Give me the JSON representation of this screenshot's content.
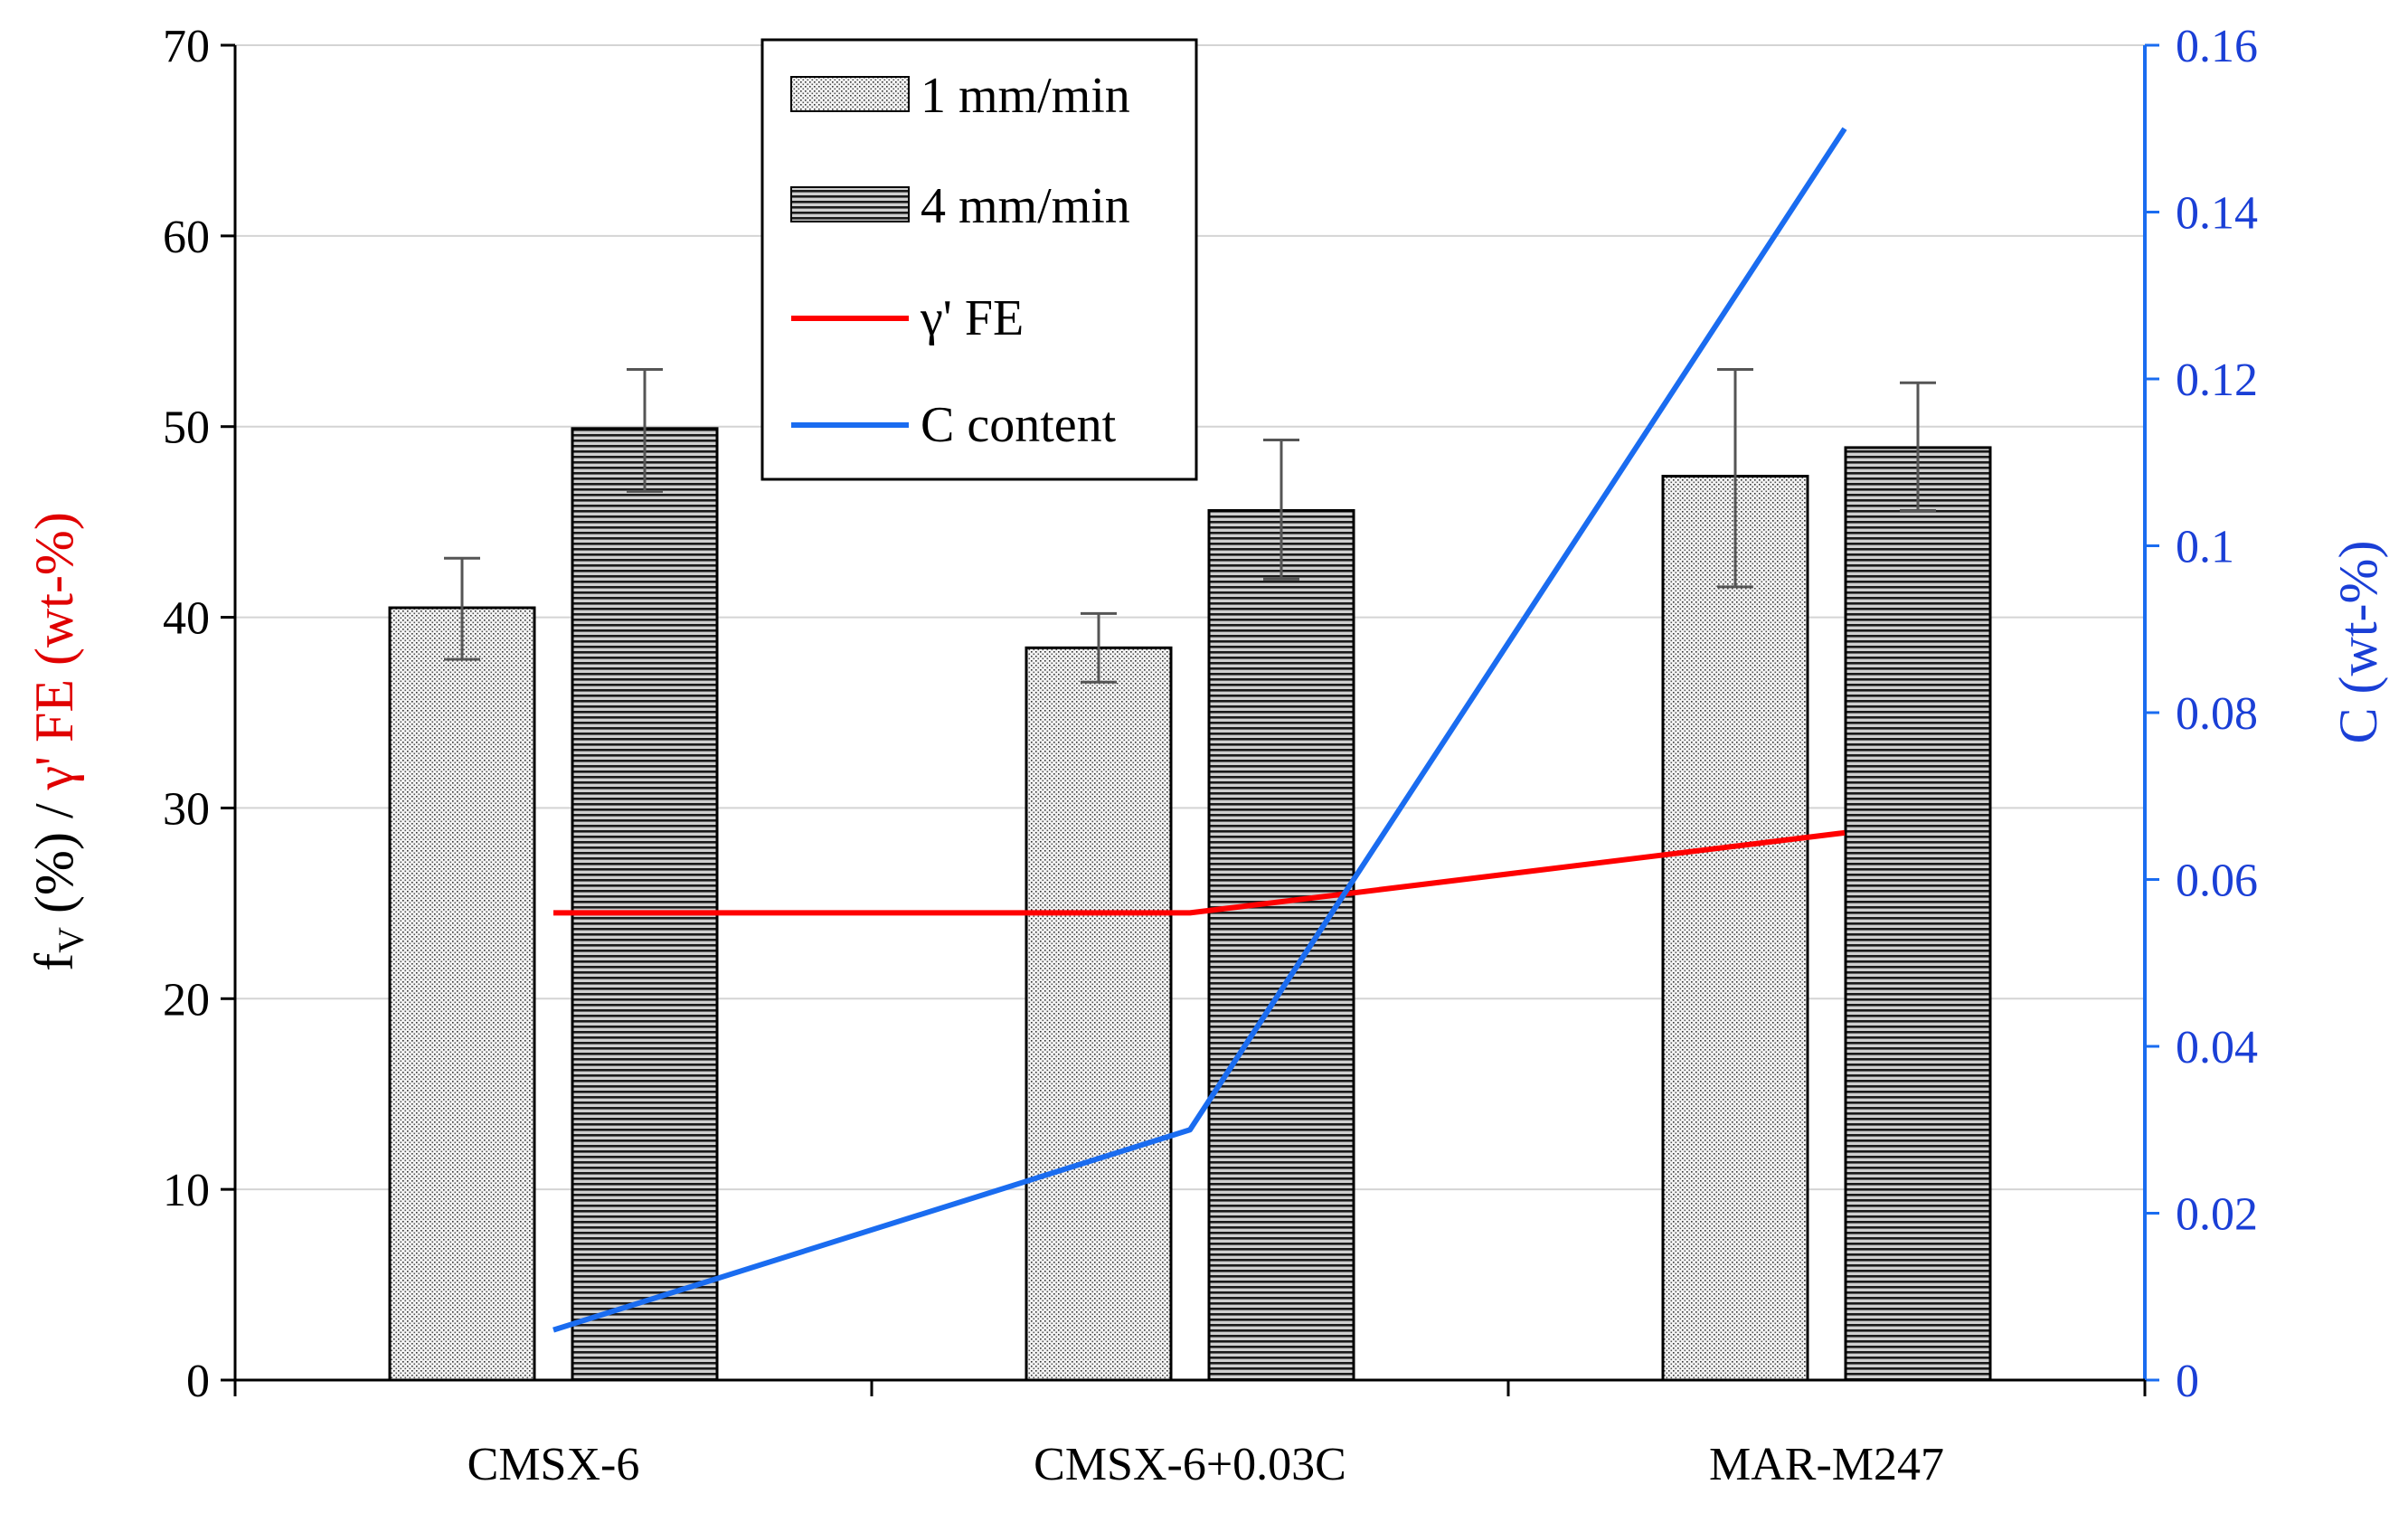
{
  "chart_data": {
    "type": "bar",
    "title": "",
    "categories": [
      "CMSX-6",
      "CMSX-6+0.03C",
      "MAR-M247"
    ],
    "series": [
      {
        "name": "1 mm/min",
        "kind": "bar",
        "pattern": "dots",
        "values": [
          40.5,
          38.4,
          47.4
        ],
        "error_low": [
          37.8,
          36.6,
          41.6
        ],
        "error_high": [
          43.1,
          40.2,
          53.0
        ]
      },
      {
        "name": "4 mm/min",
        "kind": "bar",
        "pattern": "stripes",
        "values": [
          49.9,
          45.6,
          48.9
        ],
        "error_low": [
          46.6,
          42.0,
          45.6
        ],
        "error_high": [
          53.0,
          49.3,
          52.3
        ]
      },
      {
        "name": "γ' FE",
        "kind": "line",
        "axis": "left",
        "color": "#ff0000",
        "values": [
          24.5,
          24.5,
          28.7
        ]
      },
      {
        "name": "C content",
        "kind": "line",
        "axis": "right",
        "color": "#1a6cf0",
        "values": [
          0.006,
          0.03,
          0.15
        ]
      }
    ],
    "ylim": [
      0,
      70
    ],
    "yticks": [
      "0",
      "10",
      "20",
      "30",
      "40",
      "50",
      "60",
      "70"
    ],
    "y2lim": [
      0,
      0.16
    ],
    "y2ticks": [
      "0",
      "0.02",
      "0.04",
      "0.06",
      "0.08",
      "0.1",
      "0.12",
      "0.14",
      "0.16"
    ],
    "ylabel": {
      "f": "f",
      "sub": "V",
      "part1": " (%) / ",
      "part2": "γ' FE (wt-%)"
    },
    "y2label": "C (wt-%)",
    "xlabel": "",
    "grid": true,
    "legend_position": "top-center-left"
  }
}
